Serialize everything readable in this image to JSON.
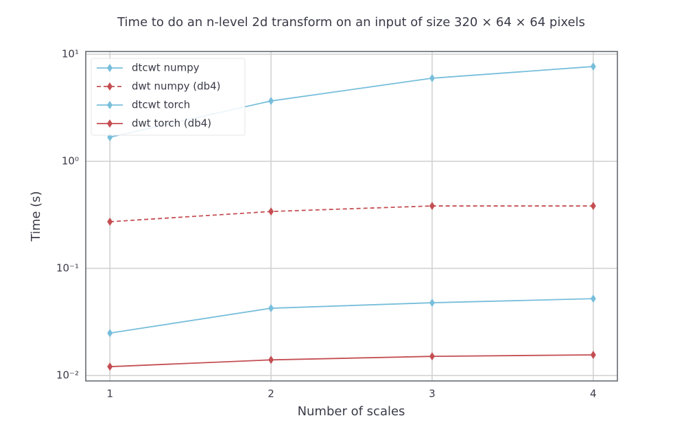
{
  "chart_data": {
    "type": "line",
    "title": "Time to do an n-level 2d transform on an input of size 320 × 64 × 64 pixels",
    "x_label": "Number of scales",
    "y_label": "Time (s)",
    "x": [
      1,
      2,
      3,
      4
    ],
    "xlim": [
      0.85,
      4.15
    ],
    "xticks": [
      1,
      2,
      3,
      4
    ],
    "ylim": [
      0.0089,
      10.6
    ],
    "log_y": true,
    "yticks": [
      {
        "value": 0.01,
        "label": "10⁻²"
      },
      {
        "value": 0.1,
        "label": "10⁻¹"
      },
      {
        "value": 1,
        "label": "10⁰"
      },
      {
        "value": 10,
        "label": "10¹"
      }
    ],
    "grid": true,
    "legend": "upper left",
    "series": [
      {
        "name": "dtcwt numpy",
        "color": "#77bedb",
        "linestyle": "solid",
        "values": [
          1.68,
          3.66,
          5.97,
          7.67
        ]
      },
      {
        "name": "dwt numpy (db4)",
        "color": "#c44e52",
        "linestyle": "dashed",
        "values": [
          0.273,
          0.34,
          0.383,
          0.383
        ]
      },
      {
        "name": "dtcwt torch",
        "color": "#77bedb",
        "linestyle": "solid",
        "values": [
          0.0249,
          0.0425,
          0.0478,
          0.0522
        ]
      },
      {
        "name": "dwt torch (db4)",
        "color": "#c44e52",
        "linestyle": "solid",
        "values": [
          0.0121,
          0.014,
          0.0151,
          0.0156
        ]
      }
    ]
  }
}
